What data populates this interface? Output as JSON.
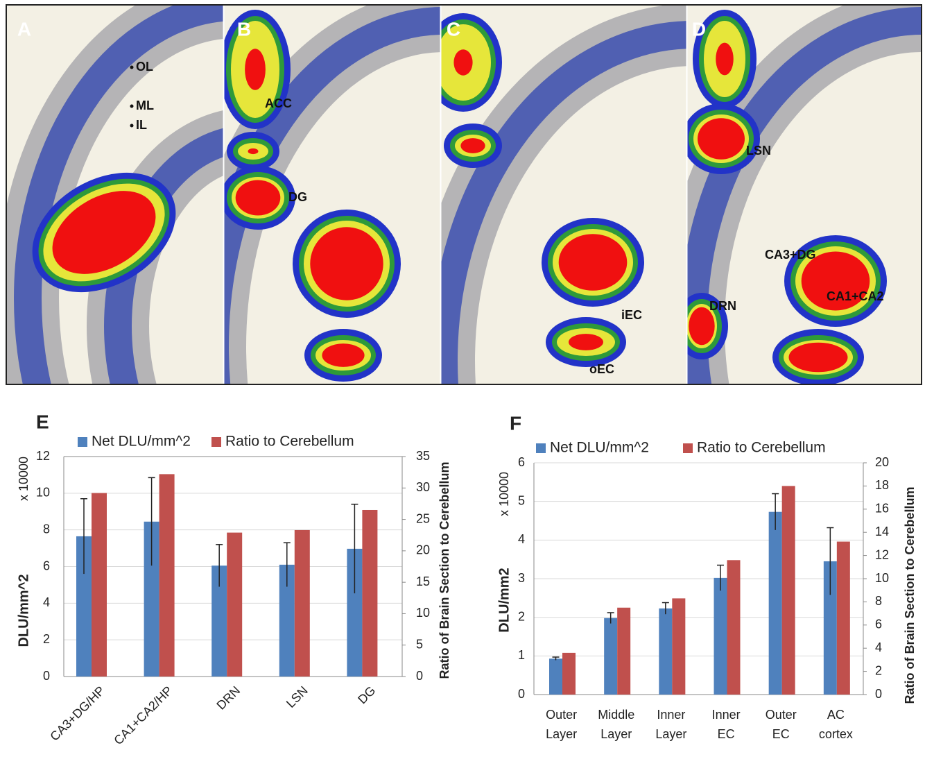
{
  "images": [
    {
      "panel": "A",
      "labels": [
        "OL",
        "ML",
        "IL"
      ]
    },
    {
      "panel": "B",
      "labels": [
        "ACC",
        "DG"
      ]
    },
    {
      "panel": "C",
      "labels": [
        "iEC",
        "oEC"
      ]
    },
    {
      "panel": "D",
      "labels": [
        "LSN",
        "CA3+DG",
        "CA1+CA2",
        "DRN"
      ]
    }
  ],
  "chart_data": [
    {
      "type": "bar",
      "panel": "E",
      "y_label": "DLU/mm^2",
      "y_multiplier": "x 10000",
      "y2_label": "Ratio of Brain Section to Cerebellum",
      "categories": [
        "CA3+DG/HP",
        "CA1+CA2/HP",
        "DRN",
        "LSN",
        "DG"
      ],
      "series": [
        {
          "name": "Net DLU/mm^2",
          "color": "#4f81bd",
          "values": [
            7.65,
            8.45,
            6.05,
            6.1,
            6.97
          ],
          "errors": [
            2.05,
            2.4,
            1.15,
            1.2,
            2.43
          ]
        },
        {
          "name": "Ratio to Cerebellum",
          "color": "#c0504d",
          "axis": "y2",
          "values": [
            29.2,
            32.2,
            22.9,
            23.3,
            26.5
          ]
        }
      ],
      "ylim": [
        0,
        12
      ],
      "yticks": [
        0,
        2,
        4,
        6,
        8,
        10,
        12
      ],
      "y2lim": [
        0,
        35
      ],
      "y2ticks": [
        0,
        5,
        10,
        15,
        20,
        25,
        30,
        35
      ],
      "grid": true
    },
    {
      "type": "bar",
      "panel": "F",
      "y_label": "DLU/mm2",
      "y_multiplier": "x 10000",
      "y2_label": "Ratio of Brain Section to Cerebellum",
      "categories": [
        [
          "Outer",
          "Layer"
        ],
        [
          "Middle",
          "Layer"
        ],
        [
          "Inner",
          "Layer"
        ],
        [
          "Inner",
          "EC"
        ],
        [
          "Outer",
          "EC"
        ],
        [
          "AC",
          "cortex"
        ]
      ],
      "series": [
        {
          "name": "Net DLU/mm^2",
          "color": "#4f81bd",
          "values": [
            0.93,
            1.98,
            2.23,
            3.02,
            4.73,
            3.45
          ],
          "errors": [
            0.04,
            0.14,
            0.15,
            0.33,
            0.47,
            0.87
          ]
        },
        {
          "name": "Ratio to Cerebellum",
          "color": "#c0504d",
          "axis": "y2",
          "values": [
            3.6,
            7.5,
            8.3,
            11.6,
            18.0,
            13.2
          ]
        }
      ],
      "ylim": [
        0,
        6
      ],
      "yticks": [
        0,
        1,
        2,
        3,
        4,
        5,
        6
      ],
      "y2lim": [
        0,
        20
      ],
      "y2ticks": [
        0,
        2,
        4,
        6,
        8,
        10,
        12,
        14,
        16,
        18,
        20
      ],
      "grid": true
    }
  ]
}
